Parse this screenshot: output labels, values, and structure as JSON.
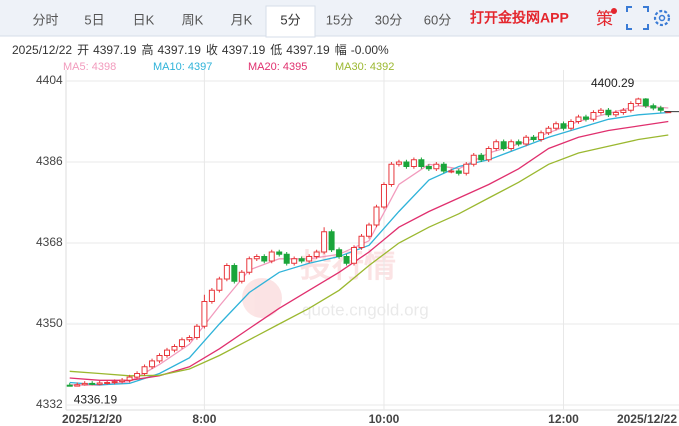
{
  "header": {
    "tabs": [
      "分时",
      "5日",
      "日K",
      "周K",
      "月K",
      "5分",
      "15分",
      "30分",
      "60分"
    ],
    "selected": 5,
    "app_link": "打开金投网APP",
    "strategy": "策"
  },
  "info": {
    "date": "2025/12/22",
    "items": [
      {
        "label": "开",
        "value": "4397.19"
      },
      {
        "label": "高",
        "value": "4397.19"
      },
      {
        "label": "收",
        "value": "4397.19"
      },
      {
        "label": "低",
        "value": "4397.19"
      },
      {
        "label": "幅",
        "value": "-0.00%"
      }
    ]
  },
  "watermark": {
    "text": "投行情",
    "url": "quote.cngold.org"
  },
  "chart_data": {
    "type": "candlestick",
    "up_color": "#e8383d",
    "down_color": "#1aa53a",
    "ylim": [
      4332,
      4404
    ],
    "yticks": [
      4332,
      4350,
      4368,
      4386,
      4404
    ],
    "grid": true,
    "xlim": [
      -0.5,
      80.5
    ],
    "xticks": [
      {
        "value": 0,
        "label": "2025/12/20"
      },
      {
        "value": 18,
        "label": "8:00"
      },
      {
        "value": 42,
        "label": "10:00"
      },
      {
        "value": 66,
        "label": "12:00"
      },
      {
        "value": 80,
        "label": "2025/12/22"
      }
    ],
    "open": [
      4336.4,
      4336.2,
      4336.5,
      4336.8,
      4336.6,
      4336.9,
      4337.0,
      4337.2,
      4337.5,
      4338.2,
      4339.0,
      4340.5,
      4341.8,
      4343.0,
      4344.2,
      4345.0,
      4346.5,
      4347.0,
      4349.5,
      4355.0,
      4357.5,
      4360.0,
      4363.0,
      4359.5,
      4361.5,
      4364.5,
      4365.0,
      4364.0,
      4366.0,
      4365.5,
      4363.5,
      4364.5,
      4364.0,
      4365.0,
      4366.0,
      4370.5,
      4366.5,
      4365.0,
      4363.5,
      4367.0,
      4369.5,
      4372.0,
      4376.0,
      4381.0,
      4385.5,
      4386.0,
      4385.0,
      4386.5,
      4385.0,
      4384.5,
      4385.5,
      4384.0,
      4384.0,
      4383.5,
      4385.5,
      4387.5,
      4386.5,
      4389.0,
      4390.5,
      4389.0,
      4390.5,
      4390.0,
      4391.5,
      4391.0,
      4392.5,
      4393.5,
      4394.5,
      4393.5,
      4395.0,
      4396.0,
      4395.5,
      4397.0,
      4397.5,
      4396.5,
      4397.0,
      4397.5,
      4399.0,
      4400.0,
      4398.5,
      4398.0,
      4397.19
    ],
    "high": [
      4336.9,
      4337.0,
      4337.3,
      4337.3,
      4337.4,
      4337.5,
      4337.7,
      4338.0,
      4338.7,
      4339.5,
      4341.0,
      4342.3,
      4343.5,
      4344.7,
      4345.5,
      4347.0,
      4347.5,
      4350.0,
      4356.5,
      4358.0,
      4360.5,
      4363.5,
      4363.5,
      4362.0,
      4365.0,
      4365.5,
      4365.5,
      4366.5,
      4366.5,
      4366.0,
      4365.0,
      4365.0,
      4365.5,
      4366.5,
      4371.5,
      4371.0,
      4367.0,
      4365.5,
      4367.5,
      4370.0,
      4372.5,
      4376.5,
      4381.5,
      4386.0,
      4386.5,
      4386.5,
      4387.0,
      4387.0,
      4385.5,
      4386.0,
      4386.0,
      4384.5,
      4384.5,
      4386.0,
      4388.0,
      4388.0,
      4389.5,
      4391.0,
      4391.0,
      4391.0,
      4391.0,
      4392.0,
      4392.0,
      4393.0,
      4394.0,
      4395.0,
      4395.0,
      4395.5,
      4396.5,
      4396.5,
      4397.5,
      4398.0,
      4398.0,
      4397.5,
      4398.0,
      4399.5,
      4400.29,
      4400.2,
      4399.0,
      4398.5,
      4397.19
    ],
    "low": [
      4336.19,
      4336.2,
      4336.3,
      4336.4,
      4336.4,
      4336.5,
      4336.6,
      4336.8,
      4337.0,
      4337.7,
      4338.5,
      4340.0,
      4341.3,
      4342.5,
      4343.7,
      4344.5,
      4346.0,
      4346.5,
      4349.0,
      4354.5,
      4357.0,
      4359.5,
      4359.0,
      4359.0,
      4361.0,
      4364.0,
      4363.5,
      4363.5,
      4365.0,
      4363.0,
      4363.0,
      4363.5,
      4363.5,
      4364.5,
      4365.5,
      4366.0,
      4364.5,
      4363.0,
      4363.0,
      4366.5,
      4369.0,
      4371.5,
      4375.5,
      4380.5,
      4385.0,
      4384.5,
      4384.5,
      4384.5,
      4384.0,
      4384.0,
      4383.5,
      4383.5,
      4383.0,
      4383.0,
      4385.0,
      4386.0,
      4386.0,
      4388.5,
      4388.5,
      4388.5,
      4389.5,
      4389.5,
      4390.5,
      4390.5,
      4392.0,
      4393.0,
      4393.0,
      4393.0,
      4394.5,
      4395.0,
      4395.0,
      4396.5,
      4396.0,
      4396.0,
      4396.5,
      4397.0,
      4398.5,
      4398.0,
      4397.5,
      4397.0,
      4397.19
    ],
    "close": [
      4336.2,
      4336.5,
      4336.8,
      4336.6,
      4336.9,
      4337.0,
      4337.2,
      4337.5,
      4338.2,
      4339.0,
      4340.5,
      4341.8,
      4343.0,
      4344.2,
      4345.0,
      4346.5,
      4347.0,
      4349.5,
      4355.0,
      4357.5,
      4360.0,
      4363.0,
      4359.5,
      4361.5,
      4364.5,
      4365.0,
      4364.0,
      4366.0,
      4365.5,
      4363.5,
      4364.5,
      4364.0,
      4365.0,
      4366.0,
      4370.5,
      4366.5,
      4365.0,
      4363.5,
      4367.0,
      4369.5,
      4372.0,
      4376.0,
      4381.0,
      4385.5,
      4386.0,
      4385.0,
      4386.5,
      4385.0,
      4384.5,
      4385.5,
      4384.0,
      4384.0,
      4383.5,
      4385.5,
      4387.5,
      4386.5,
      4389.0,
      4390.5,
      4389.0,
      4390.5,
      4390.0,
      4391.5,
      4391.0,
      4392.5,
      4393.5,
      4394.5,
      4393.5,
      4395.0,
      4396.0,
      4395.5,
      4397.0,
      4397.5,
      4396.5,
      4397.0,
      4397.5,
      4399.0,
      4400.0,
      4398.5,
      4398.0,
      4397.5,
      4397.19
    ],
    "line_x": [
      0,
      4,
      8,
      12,
      16,
      20,
      24,
      28,
      32,
      36,
      40,
      44,
      48,
      52,
      56,
      60,
      64,
      68,
      72,
      76,
      80
    ],
    "series": [
      {
        "legend": "MA5: 4398",
        "color": "#f29bbd",
        "values": [
          4336.5,
          4336.4,
          4337.2,
          4341,
          4345.5,
          4354,
          4362,
          4364.5,
          4364.5,
          4365.5,
          4368.5,
          4381,
          4385.5,
          4384.5,
          4388,
          4390,
          4392.5,
          4395,
          4396.8,
          4398.5,
          4398
        ]
      },
      {
        "legend": "MA10: 4397",
        "color": "#2fb3d9",
        "values": [
          4337,
          4336.5,
          4336.8,
          4339,
          4342.5,
          4350,
          4357,
          4361.5,
          4363.5,
          4365,
          4367.5,
          4375,
          4382,
          4385,
          4386.5,
          4389,
          4391.5,
          4393.5,
          4395.5,
          4396.5,
          4397
        ]
      },
      {
        "legend": "MA20: 4395",
        "color": "#e0306e",
        "values": [
          4338,
          4337.5,
          4337.5,
          4338.5,
          4340.5,
          4344.5,
          4349,
          4353.5,
          4357.5,
          4361.5,
          4366,
          4371.5,
          4375,
          4378,
          4381,
          4384.5,
          4389,
          4391.5,
          4393,
          4394,
          4395
        ]
      },
      {
        "legend": "MA30: 4392",
        "color": "#9bb830",
        "values": [
          4339.5,
          4339,
          4338.5,
          4338.6,
          4340,
          4343,
          4346.5,
          4350,
          4353.5,
          4357.5,
          4363,
          4368,
          4371.5,
          4374.5,
          4378,
          4381.5,
          4385.5,
          4388,
          4389.5,
          4391,
          4392
        ]
      }
    ]
  }
}
